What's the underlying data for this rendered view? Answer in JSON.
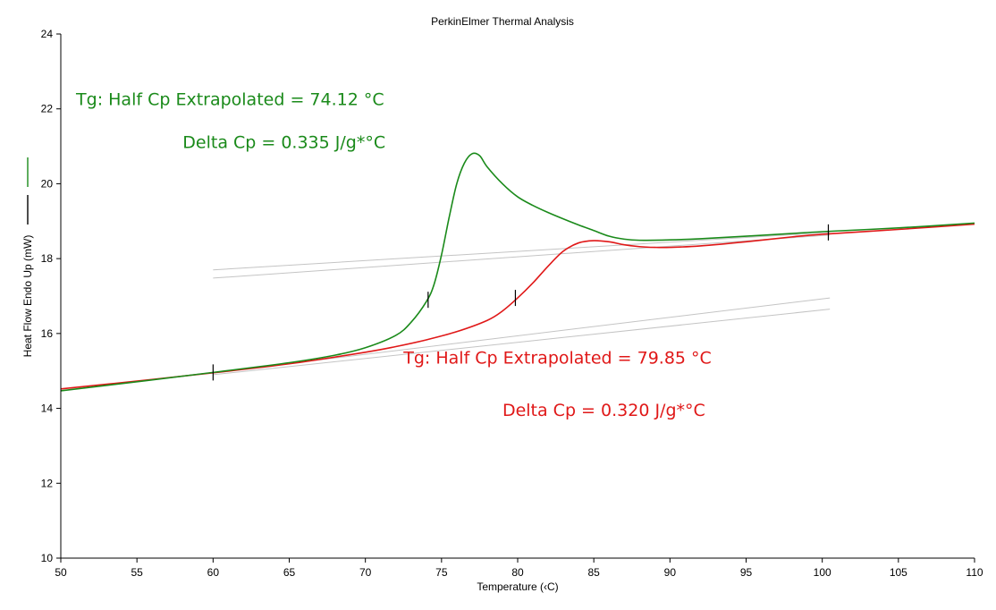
{
  "chart_data": {
    "type": "line",
    "title": "PerkinElmer Thermal Analysis",
    "xlabel": "Temperature (‹C)",
    "ylabel": "Heat Flow Endo Up (mW)",
    "xlim": [
      50,
      110
    ],
    "ylim": [
      10,
      24
    ],
    "xticks": [
      50,
      55,
      60,
      65,
      70,
      75,
      80,
      85,
      90,
      95,
      100,
      105,
      110
    ],
    "yticks": [
      10,
      12,
      14,
      16,
      18,
      20,
      22,
      24
    ],
    "grid": false,
    "legend": "left-vertical",
    "series": [
      {
        "color": "#1a8a1a",
        "x": [
          50,
          55,
          60,
          65,
          68,
          70,
          72,
          73,
          74,
          74.5,
          75,
          75.5,
          76,
          76.5,
          77,
          77.5,
          78,
          79,
          80,
          81,
          82,
          83,
          84,
          85,
          86,
          87,
          88,
          90,
          92,
          95,
          98,
          100,
          105,
          110
        ],
        "y": [
          14.47,
          14.71,
          14.96,
          15.22,
          15.42,
          15.62,
          15.95,
          16.3,
          16.85,
          17.3,
          18.1,
          19.1,
          20.0,
          20.55,
          20.8,
          20.75,
          20.45,
          20.0,
          19.65,
          19.42,
          19.23,
          19.06,
          18.9,
          18.75,
          18.6,
          18.52,
          18.49,
          18.5,
          18.53,
          18.6,
          18.67,
          18.72,
          18.82,
          18.95
        ]
      },
      {
        "color": "#e01818",
        "x": [
          50,
          55,
          60,
          65,
          70,
          72,
          74,
          76,
          78,
          79,
          80,
          81,
          82,
          83,
          84,
          85,
          86,
          87,
          88,
          89,
          90,
          92,
          95,
          98,
          100,
          105,
          110
        ],
        "y": [
          14.52,
          14.73,
          14.95,
          15.19,
          15.5,
          15.65,
          15.83,
          16.05,
          16.35,
          16.6,
          16.95,
          17.35,
          17.8,
          18.2,
          18.42,
          18.48,
          18.45,
          18.37,
          18.32,
          18.3,
          18.3,
          18.34,
          18.45,
          18.58,
          18.65,
          18.78,
          18.92
        ]
      }
    ],
    "baselines": [
      {
        "x": [
          60,
          100.5
        ],
        "y": [
          17.7,
          18.7
        ]
      },
      {
        "x": [
          60,
          100.5
        ],
        "y": [
          17.48,
          18.63
        ]
      },
      {
        "x": [
          60,
          100.5
        ],
        "y": [
          14.95,
          16.95
        ]
      },
      {
        "x": [
          60,
          100.5
        ],
        "y": [
          14.9,
          16.65
        ]
      }
    ],
    "markers": [
      {
        "x": 60,
        "y": 14.96
      },
      {
        "x": 74.12,
        "y": 16.9
      },
      {
        "x": 79.85,
        "y": 16.95
      },
      {
        "x": 100.4,
        "y": 18.7
      }
    ],
    "legend_colors": [
      "#1a8a1a",
      "#000000"
    ],
    "annotations": [
      {
        "text": "Tg: Half Cp Extrapolated = 74.12 °C",
        "color": "#1a8a1a",
        "x": 51,
        "y": 22.1
      },
      {
        "text": "Delta Cp = 0.335 J/g*°C",
        "color": "#1a8a1a",
        "x": 58,
        "y": 20.95
      },
      {
        "text": "Tg: Half Cp Extrapolated = 79.85 °C",
        "color": "#e01818",
        "x": 72.5,
        "y": 15.2
      },
      {
        "text": "Delta Cp = 0.320 J/g*°C",
        "color": "#e01818",
        "x": 79,
        "y": 13.8
      }
    ]
  }
}
